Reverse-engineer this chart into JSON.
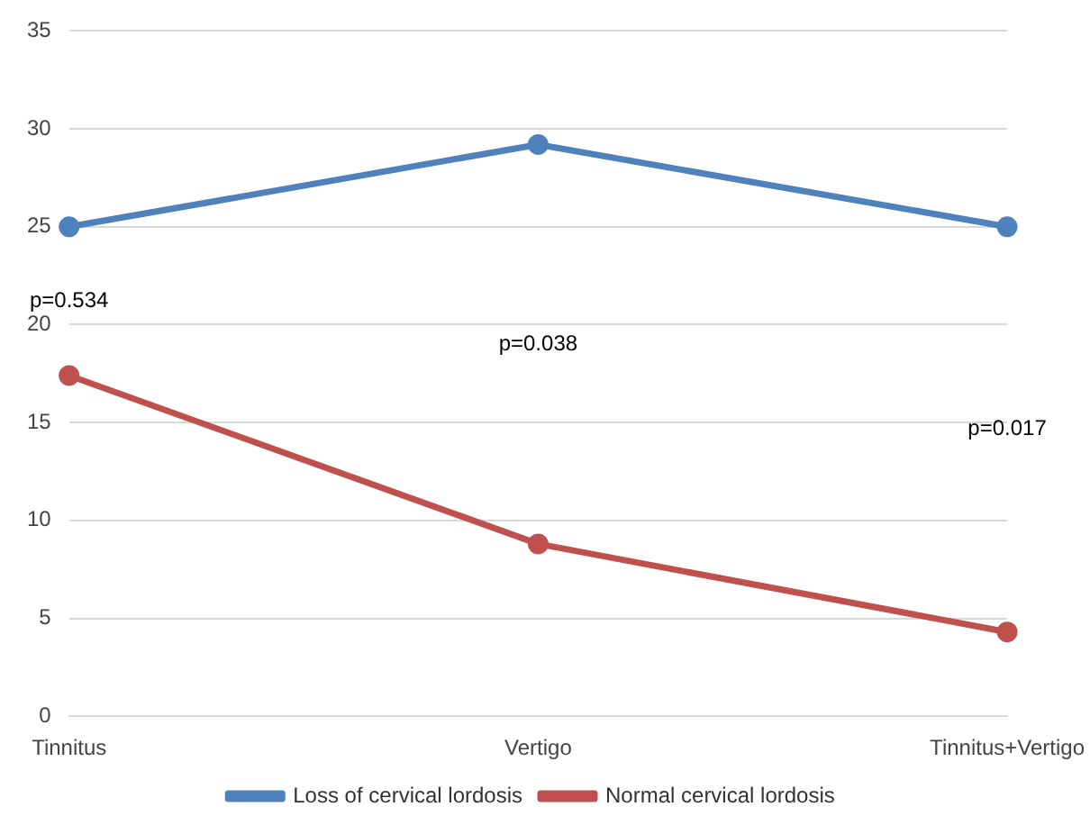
{
  "chart_data": {
    "type": "line",
    "categories": [
      "Tinnitus",
      "Vertigo",
      "Tinnitus+Vertigo"
    ],
    "series": [
      {
        "name": "Loss of cervical lordosis",
        "color": "#4f81bd",
        "values": [
          25,
          29.2,
          25
        ]
      },
      {
        "name": "Normal cervical lordosis",
        "color": "#c0504d",
        "values": [
          17.4,
          8.8,
          4.3
        ]
      }
    ],
    "ylim": [
      0,
      35
    ],
    "yticks": [
      0,
      5,
      10,
      15,
      20,
      25,
      30,
      35
    ],
    "grid": "y",
    "legend": "bottom",
    "marker": "circle",
    "line_style": "solid",
    "annotations": [
      "p=0.534",
      "p=0.038",
      "p=0.017"
    ]
  }
}
